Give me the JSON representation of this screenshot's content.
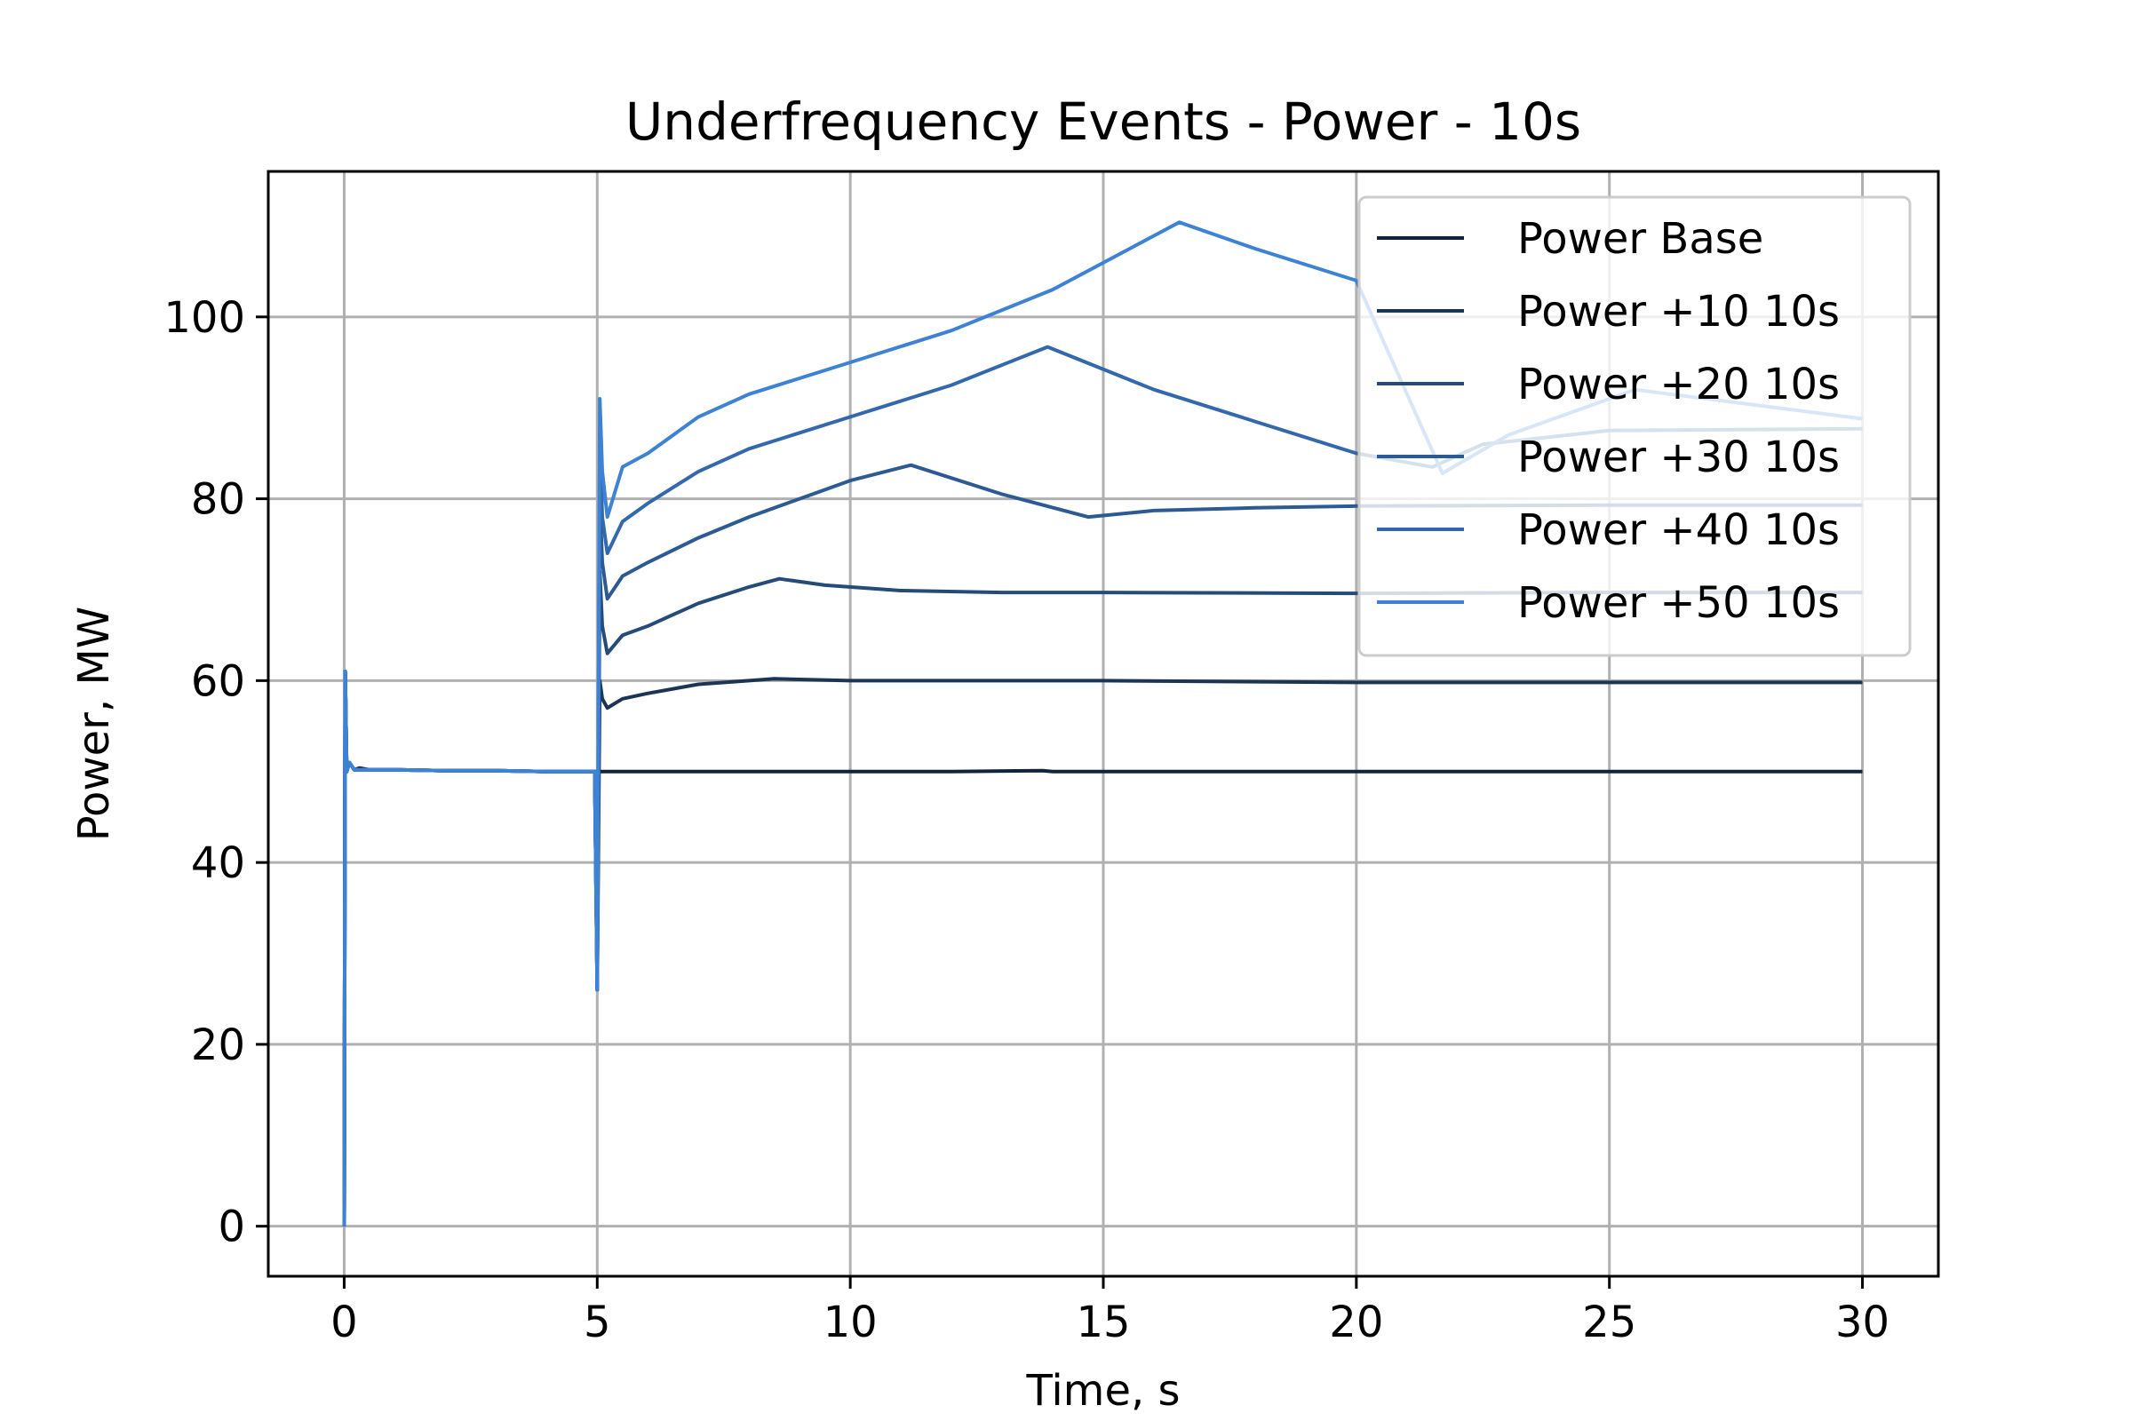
{
  "chart_data": {
    "type": "line",
    "title": "Underfrequency Events - Power - 10s",
    "xlabel": "Time, s",
    "ylabel": "Power, MW",
    "xlim": [
      -1.5,
      31.5
    ],
    "ylim": [
      -5.5,
      116
    ],
    "xticks": [
      0,
      5,
      10,
      15,
      20,
      25,
      30
    ],
    "yticks": [
      0,
      20,
      40,
      60,
      80,
      100
    ],
    "grid": true,
    "legend_position": "top-right",
    "series": [
      {
        "name": "Power Base",
        "color": "#12233a",
        "x": [
          0,
          0.02,
          0.05,
          0.1,
          0.2,
          0.3,
          0.5,
          1,
          2,
          3,
          4,
          4.95,
          5,
          6,
          8,
          10,
          12,
          13.8,
          14,
          16,
          20,
          25,
          30
        ],
        "y": [
          0,
          61,
          50,
          51,
          50.2,
          50.4,
          50.2,
          50.2,
          50.1,
          50.1,
          50,
          50,
          50,
          50,
          50,
          50,
          50,
          50.1,
          50,
          50,
          50,
          50,
          50
        ]
      },
      {
        "name": "Power +10 10s",
        "color": "#1b3554",
        "x": [
          0,
          0.02,
          0.05,
          0.1,
          0.2,
          0.5,
          1,
          2,
          3,
          4,
          4.95,
          5,
          5.05,
          5.1,
          5.2,
          5.5,
          6,
          7,
          8,
          8.5,
          10,
          12,
          15,
          20,
          25,
          30
        ],
        "y": [
          0,
          61,
          50,
          51,
          50.2,
          50.2,
          50.2,
          50.1,
          50.1,
          50,
          50,
          26,
          60,
          58,
          57,
          58,
          58.6,
          59.6,
          60,
          60.2,
          60,
          60,
          60,
          59.8,
          59.8,
          59.8
        ]
      },
      {
        "name": "Power +20 10s",
        "color": "#254b78",
        "x": [
          0,
          0.02,
          0.05,
          0.1,
          0.2,
          0.5,
          1,
          2,
          3,
          4,
          4.95,
          5,
          5.05,
          5.1,
          5.2,
          5.5,
          6,
          7,
          8,
          8.6,
          9.5,
          11,
          13,
          15,
          20,
          25,
          30
        ],
        "y": [
          0,
          61,
          50,
          51,
          50.2,
          50.2,
          50.2,
          50.1,
          50.1,
          50,
          50,
          26,
          72,
          66,
          63,
          65,
          66,
          68.5,
          70.3,
          71.2,
          70.5,
          69.9,
          69.7,
          69.7,
          69.6,
          69.7,
          69.7
        ]
      },
      {
        "name": "Power +30 10s",
        "color": "#2c5a92",
        "x": [
          0,
          0.02,
          0.05,
          0.1,
          0.2,
          0.5,
          1,
          2,
          3,
          4,
          4.95,
          5,
          5.05,
          5.1,
          5.2,
          5.5,
          6,
          7,
          8,
          9,
          10,
          11.2,
          13,
          14.7,
          16,
          18,
          20,
          25,
          30
        ],
        "y": [
          0,
          61,
          50,
          51,
          50.2,
          50.2,
          50.2,
          50.1,
          50.1,
          50,
          50,
          26,
          80,
          73,
          69,
          71.5,
          73,
          75.7,
          78,
          80,
          82,
          83.7,
          80.5,
          78,
          78.7,
          79,
          79.2,
          79.3,
          79.3
        ]
      },
      {
        "name": "Power +40 10s",
        "color": "#3369ac",
        "x": [
          0,
          0.02,
          0.05,
          0.1,
          0.2,
          0.5,
          1,
          2,
          3,
          4,
          4.95,
          5,
          5.05,
          5.1,
          5.2,
          5.5,
          6,
          7,
          8,
          10,
          12,
          13.9,
          16,
          18,
          20,
          21.5,
          22.5,
          25,
          30
        ],
        "y": [
          0,
          61,
          50,
          51,
          50.2,
          50.2,
          50.2,
          50.1,
          50.1,
          50,
          50,
          26,
          87,
          78,
          74,
          77.5,
          79.5,
          83,
          85.5,
          89,
          92.5,
          96.7,
          92,
          88.5,
          85,
          83.5,
          86,
          87.5,
          87.7
        ]
      },
      {
        "name": "Power +50 10s",
        "color": "#3d82d4",
        "x": [
          0,
          0.02,
          0.05,
          0.1,
          0.2,
          0.5,
          1,
          2,
          3,
          4,
          4.95,
          5,
          5.05,
          5.1,
          5.2,
          5.5,
          6,
          7,
          8,
          10,
          12,
          14,
          16.5,
          18,
          20,
          21.7,
          23,
          25.5,
          30
        ],
        "y": [
          0,
          61,
          50,
          51,
          50.2,
          50.2,
          50.2,
          50.1,
          50.1,
          50,
          50,
          26,
          91,
          83,
          78,
          83.5,
          85,
          89,
          91.5,
          95,
          98.5,
          103,
          110.4,
          107.5,
          104,
          82.8,
          87,
          92,
          88.8
        ]
      }
    ]
  }
}
